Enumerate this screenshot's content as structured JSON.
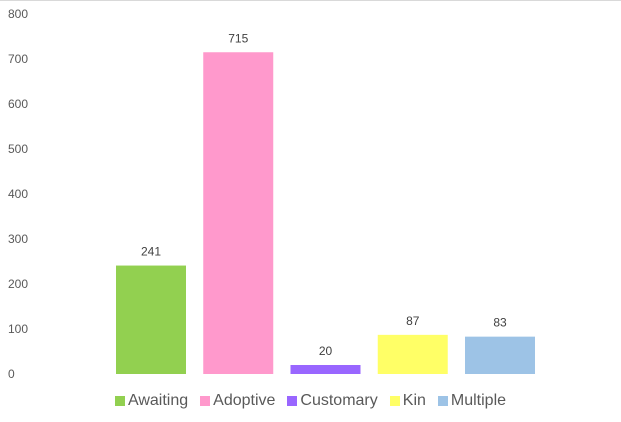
{
  "chart_data": {
    "type": "bar",
    "categories": [
      "Awaiting",
      "Adoptive",
      "Customary",
      "Kin",
      "Multiple"
    ],
    "values": [
      241,
      715,
      20,
      87,
      83
    ],
    "colors": [
      "#92d050",
      "#ff99cc",
      "#9966ff",
      "#ffff66",
      "#9dc3e6"
    ],
    "ylim": [
      0,
      800
    ],
    "yticks": [
      0,
      100,
      200,
      300,
      400,
      500,
      600,
      700,
      800
    ],
    "data_labels": [
      "241",
      "715",
      "20",
      "87",
      "83"
    ],
    "grid": false,
    "legend_position": "bottom",
    "title": "",
    "xlabel": "",
    "ylabel": ""
  },
  "legend": {
    "items": [
      {
        "label": "Awaiting",
        "color": "#92d050"
      },
      {
        "label": "Adoptive",
        "color": "#ff99cc"
      },
      {
        "label": "Customary",
        "color": "#9966ff"
      },
      {
        "label": "Kin",
        "color": "#ffff66"
      },
      {
        "label": "Multiple",
        "color": "#9dc3e6"
      }
    ]
  }
}
